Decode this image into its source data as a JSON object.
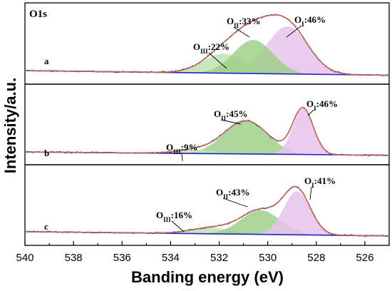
{
  "chart_data": {
    "type": "line",
    "title": "O1s",
    "xlabel": "Banding energy (eV)",
    "ylabel": "Intensity/a.u.",
    "xlim": [
      540,
      525
    ],
    "x_reversed": true,
    "x_ticks": [
      "540",
      "538",
      "536",
      "534",
      "532",
      "530",
      "528",
      "526"
    ],
    "grid": false,
    "colors": {
      "raw": "#2a2a2a",
      "fit": "#b5685a",
      "baseline": "#2222cc",
      "peak_I": "#e8c2ec",
      "peak_II": "#9fd089",
      "peak_III": "#bfe3b4"
    },
    "panels": [
      {
        "label": "a",
        "baseline": [
          [
            540,
            0.035
          ],
          [
            525,
            -0.04
          ]
        ],
        "peaks": [
          {
            "name": "O_I",
            "text_main": "O",
            "text_sub": "I",
            "text_value": ":46%",
            "center": 529.2,
            "fwhm": 2.0,
            "height": 0.78,
            "color": "peak_I"
          },
          {
            "name": "O_II",
            "text_main": "O",
            "text_sub": "II",
            "text_value": ":33%",
            "center": 530.6,
            "fwhm": 1.9,
            "height": 0.55,
            "color": "peak_II"
          },
          {
            "name": "O_III",
            "text_main": "O",
            "text_sub": "III",
            "text_value": ":22%",
            "center": 531.8,
            "fwhm": 2.0,
            "height": 0.32,
            "color": "peak_III"
          }
        ]
      },
      {
        "label": "b",
        "baseline": [
          [
            540,
            0.025
          ],
          [
            525,
            -0.03
          ]
        ],
        "peaks": [
          {
            "name": "O_I",
            "text_main": "O",
            "text_sub": "I",
            "text_value": ":46%",
            "center": 528.55,
            "fwhm": 1.0,
            "height": 0.76,
            "color": "peak_I"
          },
          {
            "name": "O_II",
            "text_main": "O",
            "text_sub": "II",
            "text_value": ":45%",
            "center": 530.9,
            "fwhm": 2.1,
            "height": 0.55,
            "color": "peak_II"
          },
          {
            "name": "O_III",
            "text_main": "O",
            "text_sub": "III",
            "text_value": ":9%",
            "center": 533.0,
            "fwhm": 1.8,
            "height": 0.06,
            "color": "peak_III"
          }
        ]
      },
      {
        "label": "c",
        "baseline": [
          [
            540,
            0.04
          ],
          [
            525,
            -0.03
          ]
        ],
        "peaks": [
          {
            "name": "O_I",
            "text_main": "O",
            "text_sub": "I",
            "text_value": ":41%",
            "center": 528.8,
            "fwhm": 1.3,
            "height": 0.72,
            "color": "peak_I"
          },
          {
            "name": "O_II",
            "text_main": "O",
            "text_sub": "II",
            "text_value": ":43%",
            "center": 530.3,
            "fwhm": 1.9,
            "height": 0.4,
            "color": "peak_II"
          },
          {
            "name": "O_III",
            "text_main": "O",
            "text_sub": "III",
            "text_value": ":16%",
            "center": 532.3,
            "fwhm": 2.0,
            "height": 0.1,
            "color": "peak_III"
          }
        ]
      }
    ]
  }
}
